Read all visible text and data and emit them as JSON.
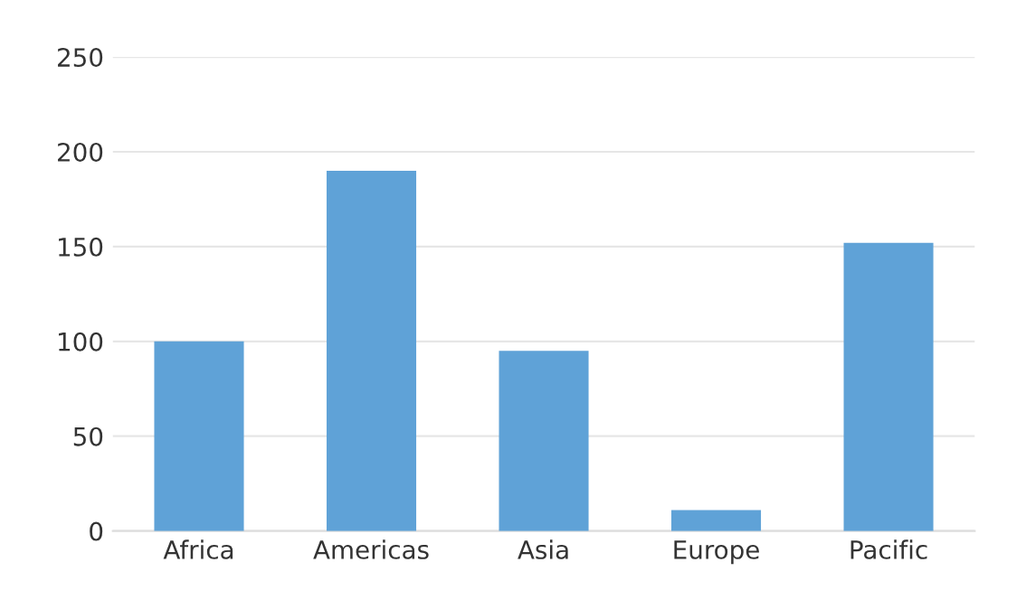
{
  "chart_data": {
    "type": "bar",
    "categories": [
      "Africa",
      "Americas",
      "Asia",
      "Europe",
      "Pacific"
    ],
    "values": [
      100,
      190,
      95,
      11,
      152
    ],
    "color": "#5fa2d7",
    "ylim": [
      0,
      250
    ],
    "yticks": [
      0,
      50,
      100,
      150,
      200,
      250
    ],
    "grid": "y"
  }
}
